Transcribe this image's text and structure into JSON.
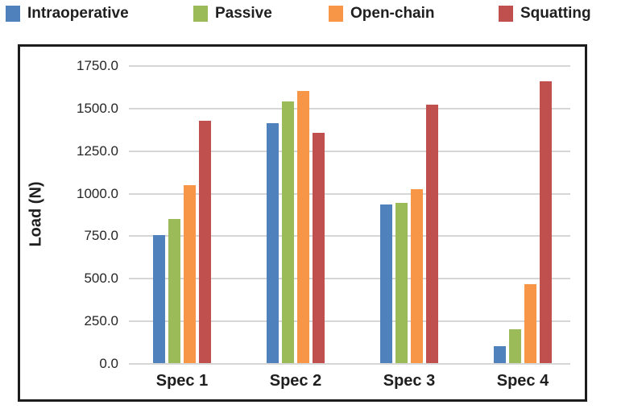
{
  "legend": {
    "items": [
      {
        "label": "Intraoperative",
        "color": "#4F81BD"
      },
      {
        "label": "Passive",
        "color": "#9BBB59"
      },
      {
        "label": "Open-chain",
        "color": "#F79646"
      },
      {
        "label": "Squatting",
        "color": "#C0504D"
      }
    ]
  },
  "chart_data": {
    "type": "bar",
    "title": "",
    "categories": [
      "Spec 1",
      "Spec 2",
      "Spec 3",
      "Spec 4"
    ],
    "series": [
      {
        "name": "Intraoperative",
        "color": "#4F81BD",
        "values": [
          750,
          1410,
          930,
          100
        ]
      },
      {
        "name": "Passive",
        "color": "#9BBB59",
        "values": [
          845,
          1535,
          940,
          200
        ]
      },
      {
        "name": "Open-chain",
        "color": "#F79646",
        "values": [
          1045,
          1600,
          1020,
          465
        ]
      },
      {
        "name": "Squatting",
        "color": "#C0504D",
        "values": [
          1425,
          1355,
          1520,
          1655
        ]
      }
    ],
    "xlabel": "",
    "ylabel": "Load (N)",
    "ylim": [
      0,
      1750
    ],
    "ytick_step": 250,
    "ytick_decimals": 1,
    "grid": true,
    "gridline_color": "#d6d6d6",
    "legend_position": "top"
  }
}
